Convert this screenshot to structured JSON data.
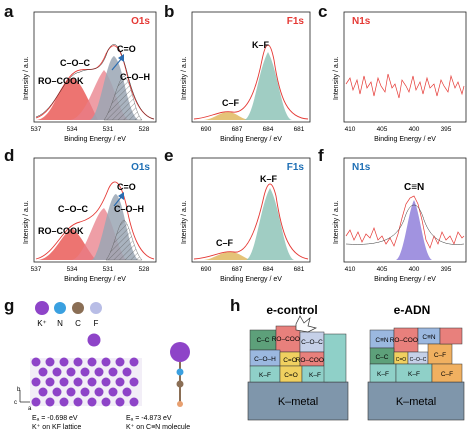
{
  "panels": [
    {
      "letter": "a",
      "tag": "O1s",
      "tag_color": "#e53935",
      "xlabel": "Binding Energy / eV",
      "ylabel": "Intensity / a.u.",
      "xticks": [
        "537",
        "534",
        "531",
        "528"
      ],
      "peaks": [
        "RO–COOK",
        "C–O–C",
        "C=O",
        "C–O–H"
      ]
    },
    {
      "letter": "b",
      "tag": "F1s",
      "tag_color": "#e53935",
      "xlabel": "Binding Energy / eV",
      "ylabel": "Intensity / a.u.",
      "xticks": [
        "690",
        "687",
        "684",
        "681"
      ],
      "peaks": [
        "C–F",
        "K–F"
      ]
    },
    {
      "letter": "c",
      "tag": "N1s",
      "tag_color": "#e53935",
      "xlabel": "Binding Energy / eV",
      "ylabel": "Intensity / a.u.",
      "xticks": [
        "410",
        "405",
        "400",
        "395"
      ],
      "peaks": []
    },
    {
      "letter": "d",
      "tag": "O1s",
      "tag_color": "#1e6fb5",
      "xlabel": "Binding Energy / eV",
      "ylabel": "Intensity / a.u.",
      "xticks": [
        "537",
        "534",
        "531",
        "528"
      ],
      "peaks": [
        "RO–COOK",
        "C–O–C",
        "C=O",
        "C–O–H"
      ]
    },
    {
      "letter": "e",
      "tag": "F1s",
      "tag_color": "#1e6fb5",
      "xlabel": "Binding Energy / eV",
      "ylabel": "Intensity / a.u.",
      "xticks": [
        "690",
        "687",
        "684",
        "681"
      ],
      "peaks": [
        "C–F",
        "K–F"
      ]
    },
    {
      "letter": "f",
      "tag": "N1s",
      "tag_color": "#1e6fb5",
      "xlabel": "Binding Energy / eV",
      "ylabel": "Intensity / a.u.",
      "xticks": [
        "410",
        "405",
        "400",
        "395"
      ],
      "peaks": [
        "C≡N"
      ]
    }
  ],
  "panel_g": {
    "letter": "g",
    "legend": [
      {
        "label": "K⁺",
        "color": "#8e44c8"
      },
      {
        "label": "N",
        "color": "#3aa0e0"
      },
      {
        "label": "C",
        "color": "#8a6e55"
      },
      {
        "label": "F",
        "color": "#b8bde6"
      }
    ],
    "axes": [
      "b",
      "c",
      "a"
    ],
    "energy_left": "Eₐ = -0.698 eV",
    "caption_left": "K⁺ on KF lattice",
    "energy_right": "Eₐ = -4.873 eV",
    "caption_right": "K⁺ on C≡N molecule"
  },
  "panel_h": {
    "letter": "h",
    "left_title": "e-control",
    "right_title": "e-ADN",
    "substrate": "K–metal",
    "left_blocks": [
      "C–C",
      "RO–COOK",
      "C–O–C",
      "C–O–H",
      "C=O",
      "K–F",
      "K–F",
      "RO–COOK",
      "C=O"
    ],
    "right_blocks": [
      "C≡N",
      "RO–COOK",
      "C≡N",
      "C–C",
      "C–F",
      "C=O",
      "C–O–C",
      "K–F",
      "K–F",
      "C–F"
    ]
  },
  "chart_data": [
    {
      "type": "line",
      "title": "O1s",
      "xlabel": "Binding Energy / eV",
      "ylabel": "Intensity / a.u.",
      "xlim": [
        537,
        527
      ],
      "series": [
        {
          "name": "RO–COOK",
          "center": 533.4
        },
        {
          "name": "C–O–C",
          "center": 532.2
        },
        {
          "name": "C=O",
          "center": 531.3
        },
        {
          "name": "C–O–H",
          "center": 530.7
        }
      ]
    },
    {
      "type": "line",
      "title": "F1s",
      "xlabel": "Binding Energy / eV",
      "ylabel": "Intensity / a.u.",
      "xlim": [
        691,
        680
      ],
      "series": [
        {
          "name": "C–F",
          "center": 687.5
        },
        {
          "name": "K–F",
          "center": 683.8
        }
      ]
    },
    {
      "type": "line",
      "title": "N1s",
      "xlabel": "Binding Energy / eV",
      "ylabel": "Intensity / a.u.",
      "xlim": [
        410,
        392
      ],
      "series": []
    },
    {
      "type": "line",
      "title": "O1s",
      "xlabel": "Binding Energy / eV",
      "ylabel": "Intensity / a.u.",
      "xlim": [
        537,
        527
      ],
      "series": [
        {
          "name": "RO–COOK",
          "center": 533.4
        },
        {
          "name": "C–O–C",
          "center": 532.2
        },
        {
          "name": "C=O",
          "center": 531.3
        },
        {
          "name": "C–O–H",
          "center": 530.7
        }
      ]
    },
    {
      "type": "line",
      "title": "F1s",
      "xlabel": "Binding Energy / eV",
      "ylabel": "Intensity / a.u.",
      "xlim": [
        691,
        680
      ],
      "series": [
        {
          "name": "C–F",
          "center": 687.6
        },
        {
          "name": "K–F",
          "center": 683.9
        }
      ]
    },
    {
      "type": "line",
      "title": "N1s",
      "xlabel": "Binding Energy / eV",
      "ylabel": "Intensity / a.u.",
      "xlim": [
        410,
        392
      ],
      "series": [
        {
          "name": "C≡N",
          "center": 399.8
        }
      ]
    }
  ]
}
